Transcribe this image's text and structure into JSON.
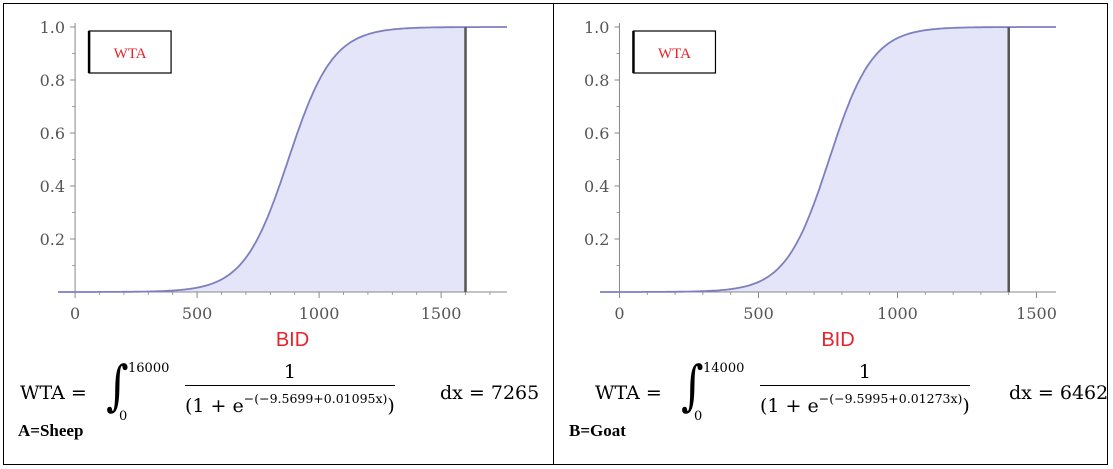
{
  "colors": {
    "curve": "#7d7fc0",
    "fill": "#e4e5f8",
    "boundary": "#555555",
    "axis": "#888888",
    "red": "#e8222b"
  },
  "chart_data": [
    {
      "type": "area",
      "legend_label": "WTA",
      "xlabel": "BID",
      "xlim": [
        -70,
        1770
      ],
      "ylim": [
        0,
        1.0
      ],
      "xticks": [
        "0",
        "500",
        "1000",
        "1500"
      ],
      "xtick_values": [
        0,
        500,
        1000,
        1500
      ],
      "yticks": [
        "0.2",
        "0.4",
        "0.6",
        "0.8",
        "1.0"
      ],
      "ytick_values": [
        0.2,
        0.4,
        0.6,
        0.8,
        1.0
      ],
      "logistic": {
        "intercept": -9.5699,
        "slope": 0.01095
      },
      "fill_upper_x": 1600,
      "formula": {
        "lhs": "WTA =",
        "upper": "16000",
        "lower": "0",
        "numerator": "1",
        "den_left": "(1 + e",
        "den_exp": "−(−9.5699+0.01095x)",
        "den_right": ")",
        "rhs": "dx = 7265"
      },
      "label": "A=Sheep"
    },
    {
      "type": "area",
      "legend_label": "WTA",
      "xlabel": "BID",
      "xlim": [
        -70,
        1570
      ],
      "ylim": [
        0,
        1.0
      ],
      "xticks": [
        "0",
        "500",
        "1000",
        "1500"
      ],
      "xtick_values": [
        0,
        500,
        1000,
        1500
      ],
      "yticks": [
        "0.2",
        "0.4",
        "0.6",
        "0.8",
        "1.0"
      ],
      "ytick_values": [
        0.2,
        0.4,
        0.6,
        0.8,
        1.0
      ],
      "logistic": {
        "intercept": -9.5995,
        "slope": 0.01273
      },
      "fill_upper_x": 1400,
      "formula": {
        "lhs": "WTA =",
        "upper": "14000",
        "lower": "0",
        "numerator": "1",
        "den_left": "(1 + e",
        "den_exp": "−(−9.5995+0.01273x)",
        "den_right": ")",
        "rhs": "dx = 6462"
      },
      "label": "B=Goat"
    }
  ]
}
